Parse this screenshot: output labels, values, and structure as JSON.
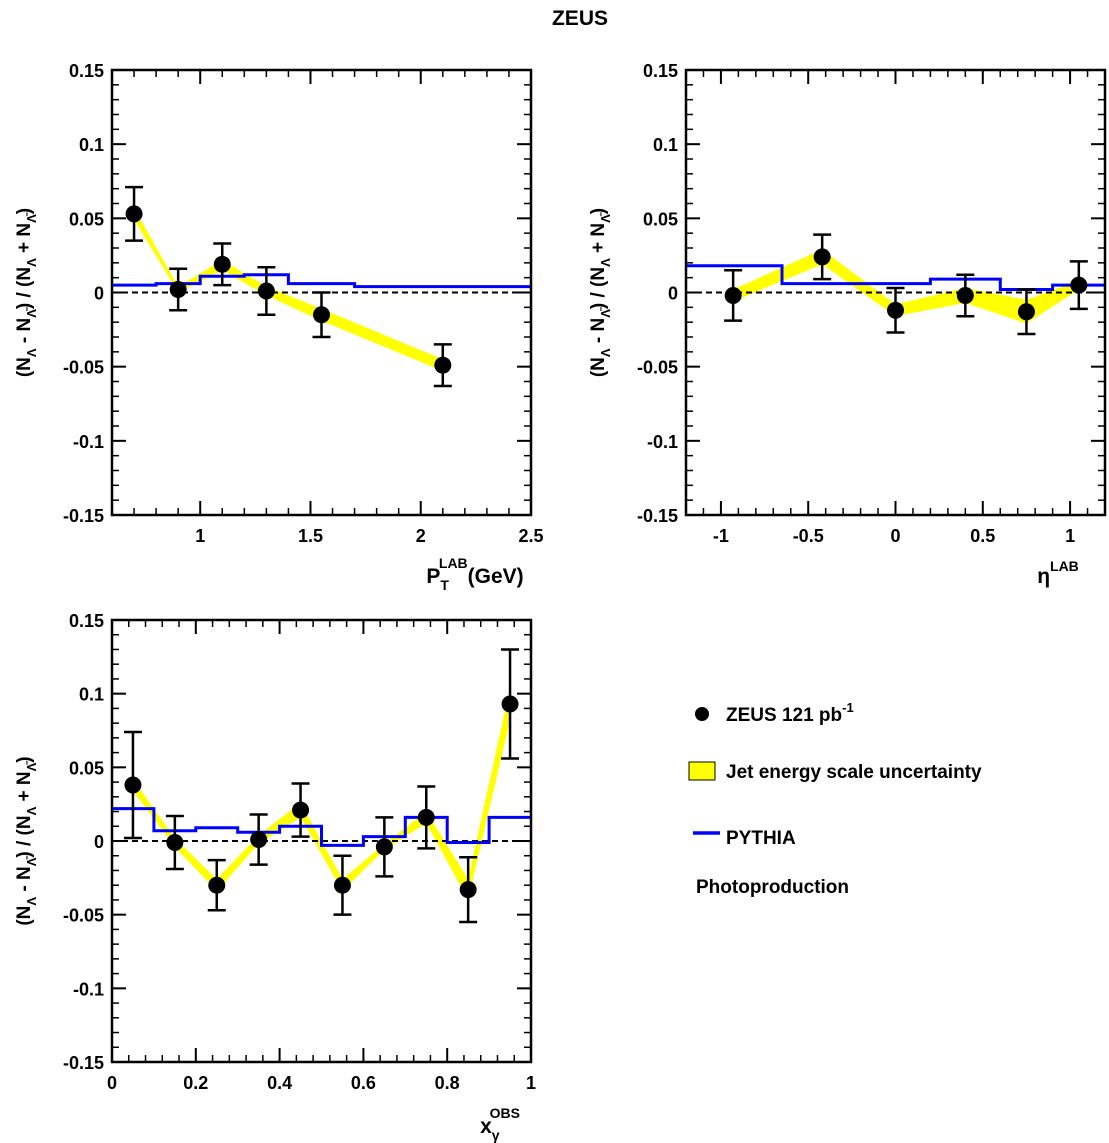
{
  "header": {
    "title": "ZEUS"
  },
  "legend": {
    "data_label": "ZEUS 121 pb",
    "data_label_sup": "-1",
    "band_label": "Jet energy scale uncertainty",
    "mc_label": "PYTHIA",
    "note": "Photoproduction"
  },
  "colors": {
    "band": "#ffff00",
    "mc": "#0000ff",
    "data": "#000000",
    "reference": "#000000"
  },
  "chart_data": [
    {
      "type": "scatter",
      "title": "",
      "ylabel_parts": [
        "(N",
        "Λ",
        " - N",
        "Λ̄",
        ") / (N",
        "Λ",
        " + N",
        "Λ̄",
        ")"
      ],
      "xlabel_main": "P",
      "xlabel_sub": "T",
      "xlabel_sup": "LAB",
      "xlabel_suffix": "(GeV)",
      "xlim": [
        0.6,
        2.5
      ],
      "ylim": [
        -0.15,
        0.15
      ],
      "xticks": [
        1,
        1.5,
        2,
        2.5
      ],
      "xtick_labels": [
        "1",
        "1.5",
        "2",
        "2.5"
      ],
      "yticks": [
        -0.15,
        -0.1,
        -0.05,
        0,
        0.05,
        0.1,
        0.15
      ],
      "ytick_labels": [
        "-0.15",
        "-0.1",
        "-0.05",
        "0",
        "0.05",
        "0.1",
        "0.15"
      ],
      "data": {
        "x": [
          0.7,
          0.9,
          1.1,
          1.3,
          1.55,
          2.1
        ],
        "y": [
          0.053,
          0.002,
          0.019,
          0.001,
          -0.015,
          -0.049
        ],
        "yerr": [
          0.018,
          0.014,
          0.014,
          0.016,
          0.015,
          0.014
        ]
      },
      "band": {
        "x": [
          0.7,
          0.9,
          1.1,
          1.3,
          1.55,
          2.1
        ],
        "lo": [
          0.049,
          0.0,
          0.015,
          -0.002,
          -0.019,
          -0.053
        ],
        "hi": [
          0.057,
          0.004,
          0.022,
          0.004,
          -0.011,
          -0.045
        ]
      },
      "mc": {
        "edges": [
          0.6,
          0.8,
          1.0,
          1.2,
          1.4,
          1.7,
          2.5
        ],
        "values": [
          0.005,
          0.006,
          0.011,
          0.012,
          0.006,
          0.004
        ]
      }
    },
    {
      "type": "scatter",
      "title": "",
      "ylabel_parts": [
        "(N",
        "Λ",
        " - N",
        "Λ̄",
        ") / (N",
        "Λ",
        " + N",
        "Λ̄",
        ")"
      ],
      "xlabel_main": "η",
      "xlabel_sub": "",
      "xlabel_sup": "LAB",
      "xlabel_suffix": "",
      "xlim": [
        -1.2,
        1.2
      ],
      "ylim": [
        -0.15,
        0.15
      ],
      "xticks": [
        -1,
        -0.5,
        0,
        0.5,
        1
      ],
      "xtick_labels": [
        "-1",
        "-0.5",
        "0",
        "0.5",
        "1"
      ],
      "yticks": [
        -0.15,
        -0.1,
        -0.05,
        0,
        0.05,
        0.1,
        0.15
      ],
      "ytick_labels": [
        "-0.15",
        "-0.1",
        "-0.05",
        "0",
        "0.05",
        "0.1",
        "0.15"
      ],
      "data": {
        "x": [
          -0.93,
          -0.42,
          0,
          0.4,
          0.75,
          1.05
        ],
        "y": [
          -0.002,
          0.024,
          -0.012,
          -0.002,
          -0.013,
          0.005
        ],
        "yerr": [
          0.017,
          0.015,
          0.015,
          0.014,
          0.015,
          0.016
        ]
      },
      "band": {
        "x": [
          -0.93,
          -0.42,
          0,
          0.4,
          0.75,
          1.05
        ],
        "lo": [
          -0.006,
          0.019,
          -0.016,
          -0.007,
          -0.021,
          0.002
        ],
        "hi": [
          0.002,
          0.029,
          -0.008,
          0.003,
          -0.005,
          0.008
        ]
      },
      "mc": {
        "edges": [
          -1.2,
          -0.65,
          0.2,
          0.6,
          0.9,
          1.2
        ],
        "values": [
          0.018,
          0.006,
          0.009,
          0.002,
          0.005
        ]
      }
    },
    {
      "type": "scatter",
      "title": "",
      "ylabel_parts": [
        "(N",
        "Λ",
        " - N",
        "Λ̄",
        ") / (N",
        "Λ",
        " + N",
        "Λ̄",
        ")"
      ],
      "xlabel_main": "x",
      "xlabel_sub": "γ",
      "xlabel_sup": "OBS",
      "xlabel_suffix": "",
      "xlim": [
        0,
        1
      ],
      "ylim": [
        -0.15,
        0.15
      ],
      "xticks": [
        0,
        0.2,
        0.4,
        0.6,
        0.8,
        1
      ],
      "xtick_labels": [
        "0",
        "0.2",
        "0.4",
        "0.6",
        "0.8",
        "1"
      ],
      "yticks": [
        -0.15,
        -0.1,
        -0.05,
        0,
        0.05,
        0.1,
        0.15
      ],
      "ytick_labels": [
        "-0.15",
        "-0.1",
        "-0.05",
        "0",
        "0.05",
        "0.1",
        "0.15"
      ],
      "data": {
        "x": [
          0.05,
          0.15,
          0.25,
          0.35,
          0.45,
          0.55,
          0.65,
          0.75,
          0.85,
          0.95
        ],
        "y": [
          0.038,
          -0.001,
          -0.03,
          0.001,
          0.021,
          -0.03,
          -0.004,
          0.016,
          -0.033,
          0.093
        ],
        "yerr": [
          0.036,
          0.018,
          0.017,
          0.017,
          0.018,
          0.02,
          0.02,
          0.021,
          0.022,
          0.037
        ]
      },
      "band": {
        "x": [
          0.05,
          0.15,
          0.25,
          0.35,
          0.45,
          0.55,
          0.65,
          0.75,
          0.85,
          0.95
        ],
        "lo": [
          0.034,
          -0.004,
          -0.034,
          -0.002,
          0.016,
          -0.034,
          -0.006,
          0.012,
          -0.04,
          0.082
        ],
        "hi": [
          0.042,
          0.002,
          -0.026,
          0.004,
          0.026,
          -0.026,
          -0.002,
          0.02,
          -0.026,
          0.104
        ]
      },
      "mc": {
        "edges": [
          0,
          0.1,
          0.2,
          0.3,
          0.4,
          0.5,
          0.6,
          0.7,
          0.8,
          0.9,
          1.0
        ],
        "values": [
          0.022,
          0.007,
          0.009,
          0.006,
          0.01,
          -0.003,
          0.003,
          0.016,
          -0.001,
          0.016
        ]
      }
    }
  ]
}
